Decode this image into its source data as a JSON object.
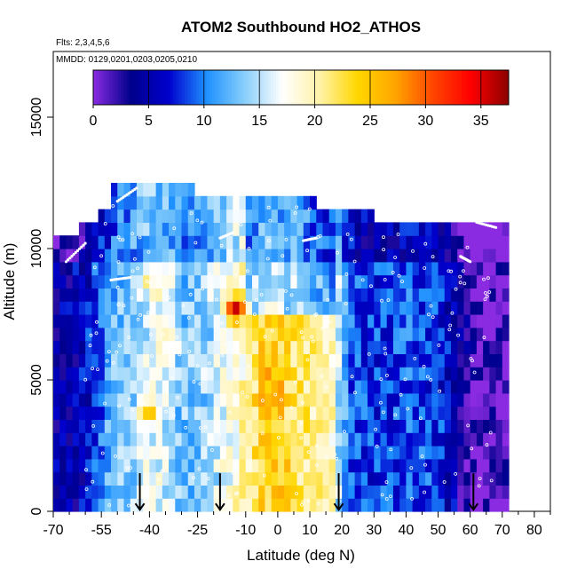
{
  "chart_data": {
    "type": "heatmap",
    "title": "ATOM2 Southbound HO2_ATHOS",
    "subtitle_flights": "Flts: 2,3,4,5,6",
    "subtitle_dates": "MMDD: 0129,0201,0203,0205,0210",
    "xlabel": "Latitude (deg N)",
    "ylabel": "Altitude (m)",
    "xlim": [
      -70,
      85
    ],
    "ylim": [
      0,
      17500
    ],
    "x_ticks": [
      -70,
      -55,
      -40,
      -25,
      -10,
      0,
      10,
      20,
      30,
      40,
      50,
      60,
      70,
      80
    ],
    "y_ticks": [
      0,
      5000,
      10000,
      15000
    ],
    "colorbar": {
      "ticks": [
        0,
        5,
        10,
        15,
        20,
        25,
        30,
        35
      ],
      "range": [
        0,
        37.5
      ],
      "colors": [
        "#8a2be2",
        "#00008b",
        "#0000cd",
        "#1e90ff",
        "#87cefa",
        "#ffffff",
        "#fff2a8",
        "#ffd700",
        "#ffa500",
        "#ff4500",
        "#ff0000",
        "#8b0000"
      ]
    },
    "profile_markers_lat": [
      -43,
      -18,
      19,
      61
    ],
    "grid": false,
    "legend_position": "top (inside plot)",
    "altitude_bin_m": 500,
    "lat_bin_deg": 2,
    "value_profiles": [
      {
        "lat": -70,
        "value": 4
      },
      {
        "lat": -60,
        "value": 6
      },
      {
        "lat": -52,
        "value": 12
      },
      {
        "lat": -45,
        "value": 14
      },
      {
        "lat": -38,
        "value": 17
      },
      {
        "lat": -30,
        "value": 13
      },
      {
        "lat": -22,
        "value": 14
      },
      {
        "lat": -16,
        "value": 17
      },
      {
        "lat": -10,
        "value": 20
      },
      {
        "lat": -5,
        "value": 24
      },
      {
        "lat": 2,
        "value": 23
      },
      {
        "lat": 10,
        "value": 21
      },
      {
        "lat": 17,
        "value": 19
      },
      {
        "lat": 22,
        "value": 9
      },
      {
        "lat": 30,
        "value": 8
      },
      {
        "lat": 40,
        "value": 9
      },
      {
        "lat": 50,
        "value": 8
      },
      {
        "lat": 58,
        "value": 3
      },
      {
        "lat": 62,
        "value": 1
      },
      {
        "lat": 72,
        "value": 1
      }
    ],
    "altitude_coverage": [
      {
        "lat": -70,
        "max_alt": 10500
      },
      {
        "lat": -62,
        "max_alt": 11000
      },
      {
        "lat": -56,
        "max_alt": 11500
      },
      {
        "lat": -52,
        "max_alt": 12500
      },
      {
        "lat": -28,
        "max_alt": 12500
      },
      {
        "lat": -26,
        "max_alt": 12000
      },
      {
        "lat": 0,
        "max_alt": 12000
      },
      {
        "lat": 12,
        "max_alt": 11500
      },
      {
        "lat": 20,
        "max_alt": 11500
      },
      {
        "lat": 30,
        "max_alt": 11000
      },
      {
        "lat": 72,
        "max_alt": 11000
      }
    ],
    "hotspots": [
      {
        "lat": -13,
        "alt": 7750,
        "value": 33
      },
      {
        "lat": -2,
        "alt": 5250,
        "value": 27
      },
      {
        "lat": -2,
        "alt": 4250,
        "value": 28
      },
      {
        "lat": 2,
        "alt": 2250,
        "value": 25
      },
      {
        "lat": 2,
        "alt": 750,
        "value": 25
      },
      {
        "lat": -40,
        "alt": 3750,
        "value": 24
      },
      {
        "lat": -38,
        "alt": 8750,
        "value": 21
      },
      {
        "lat": -35,
        "alt": 6750,
        "value": 22
      }
    ]
  }
}
